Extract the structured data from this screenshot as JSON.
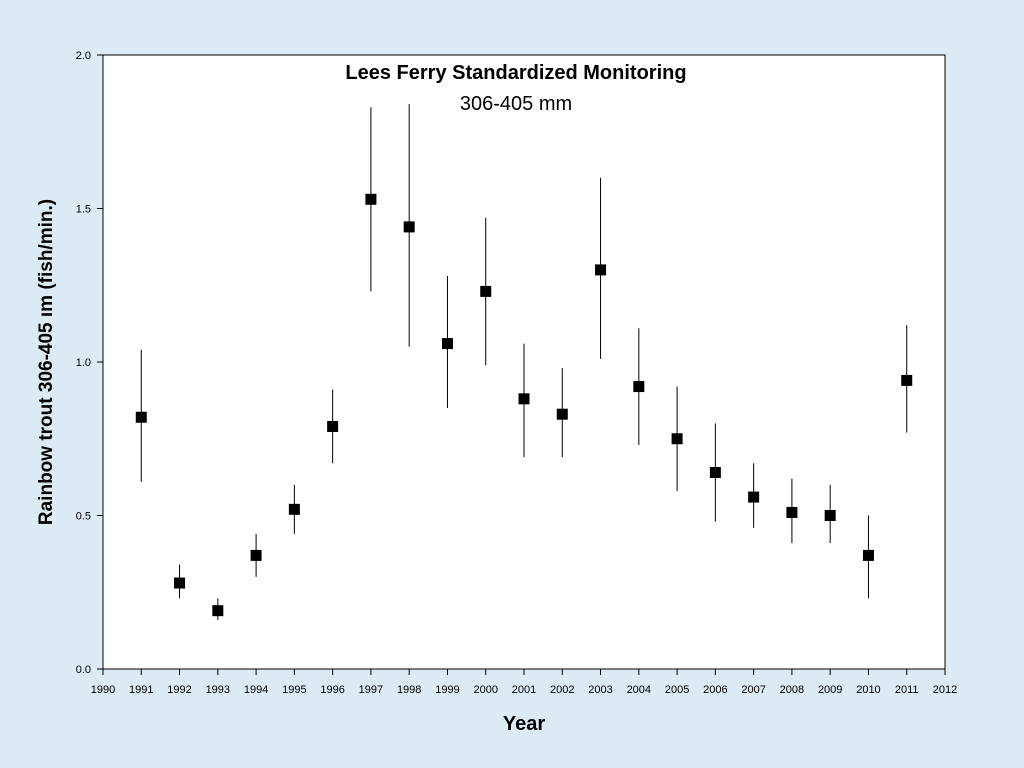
{
  "chart_data": {
    "type": "scatter",
    "title": "Lees Ferry Standardized Monitoring",
    "subtitle": "306-405 mm",
    "xlabel": "Year",
    "ylabel": "Rainbow trout  306-405  ım (fish/min.)",
    "xlim": [
      1990,
      2012
    ],
    "ylim": [
      0,
      2.0
    ],
    "xticks": [
      "1990",
      "1991",
      "1992",
      "1993",
      "1994",
      "1995",
      "1996",
      "1997",
      "1998",
      "1999",
      "2000",
      "2001",
      "2002",
      "2003",
      "2004",
      "2005",
      "2006",
      "2007",
      "2008",
      "2009",
      "2010",
      "2011",
      "2012"
    ],
    "yticks": [
      "0.0",
      "0.5",
      "1.0",
      "1.5",
      "2.0"
    ],
    "grid": false,
    "legend": "none",
    "series": [
      {
        "x": [
          1991,
          1992,
          1993,
          1994,
          1995,
          1996,
          1997,
          1998,
          1999,
          2000,
          2001,
          2002,
          2003,
          2004,
          2005,
          2006,
          2007,
          2008,
          2009,
          2010,
          2011
        ],
        "y": [
          0.82,
          0.28,
          0.19,
          0.37,
          0.52,
          0.79,
          1.53,
          1.44,
          1.06,
          1.23,
          0.88,
          0.83,
          1.3,
          0.92,
          0.75,
          0.64,
          0.56,
          0.51,
          0.5,
          0.37,
          0.94
        ],
        "y_low": [
          0.61,
          0.23,
          0.16,
          0.3,
          0.44,
          0.67,
          1.23,
          1.05,
          0.85,
          0.99,
          0.69,
          0.69,
          1.01,
          0.73,
          0.58,
          0.48,
          0.46,
          0.41,
          0.41,
          0.23,
          0.77
        ],
        "y_high": [
          1.04,
          0.34,
          0.23,
          0.44,
          0.6,
          0.91,
          1.83,
          1.84,
          1.28,
          1.47,
          1.06,
          0.98,
          1.6,
          1.11,
          0.92,
          0.8,
          0.67,
          0.62,
          0.6,
          0.5,
          1.12
        ]
      }
    ],
    "colors": {
      "marker": "#000000",
      "plot_background": "#ffffff",
      "page_background": "#dbeaf3"
    }
  }
}
